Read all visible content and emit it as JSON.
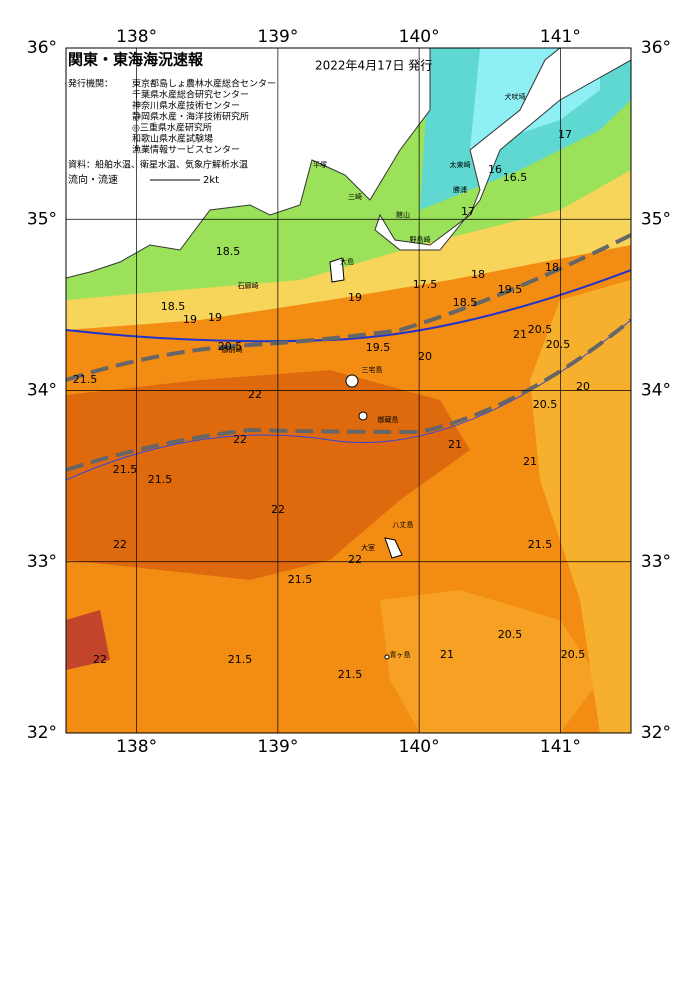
{
  "header": {
    "title": "関東・東海海況速報",
    "date": "2022年4月17日 発行"
  },
  "legend": {
    "issuer_label": "発行機関：",
    "issuers": [
      "東京都島しょ農林水産総合センター",
      "千葉県水産総合研究センター",
      "神奈川県水産技術センター",
      "静岡県水産・海洋技術研究所",
      "◎三重県水産研究所",
      "和歌山県水産試験場",
      "漁業情報サービスセンター"
    ],
    "source": "資料：船舶水温、衛星水温、気象庁解析水温",
    "current_label": "流向・流速",
    "current_scale": "2kt"
  },
  "map": {
    "lon_range": [
      137.5,
      141.5
    ],
    "lat_range": [
      32,
      36
    ],
    "lon_ticks": [
      {
        "value": 138,
        "label": "138°"
      },
      {
        "value": 139,
        "label": "139°"
      },
      {
        "value": 140,
        "label": "140°"
      },
      {
        "value": 141,
        "label": "141°"
      }
    ],
    "lat_ticks": [
      {
        "value": 32,
        "label": "32°"
      },
      {
        "value": 33,
        "label": "33°"
      },
      {
        "value": 34,
        "label": "34°"
      },
      {
        "value": 35,
        "label": "35°"
      },
      {
        "value": 36,
        "label": "36°"
      }
    ],
    "contour_labels": [
      "16",
      "16.5",
      "17",
      "17",
      "17.5",
      "18",
      "18",
      "18.5",
      "18.5",
      "19",
      "19",
      "19.5",
      "19.5",
      "20",
      "20",
      "20.5",
      "20.5",
      "20.5",
      "20.5",
      "21",
      "21",
      "21",
      "21.5",
      "21.5",
      "21.5",
      "21.5",
      "21.5",
      "21.5",
      "22",
      "22",
      "22",
      "22",
      "22",
      "22",
      "18.5",
      "19",
      "20.5",
      "21.5",
      "21",
      "20.5"
    ],
    "place_names": [
      "犬吠埼",
      "太東崎",
      "勝浦",
      "館山",
      "野島崎",
      "平塚",
      "三崎",
      "石廊崎",
      "大島",
      "三宅島",
      "御蔵島",
      "八丈島",
      "青ヶ島",
      "大室",
      "御前崎"
    ]
  }
}
